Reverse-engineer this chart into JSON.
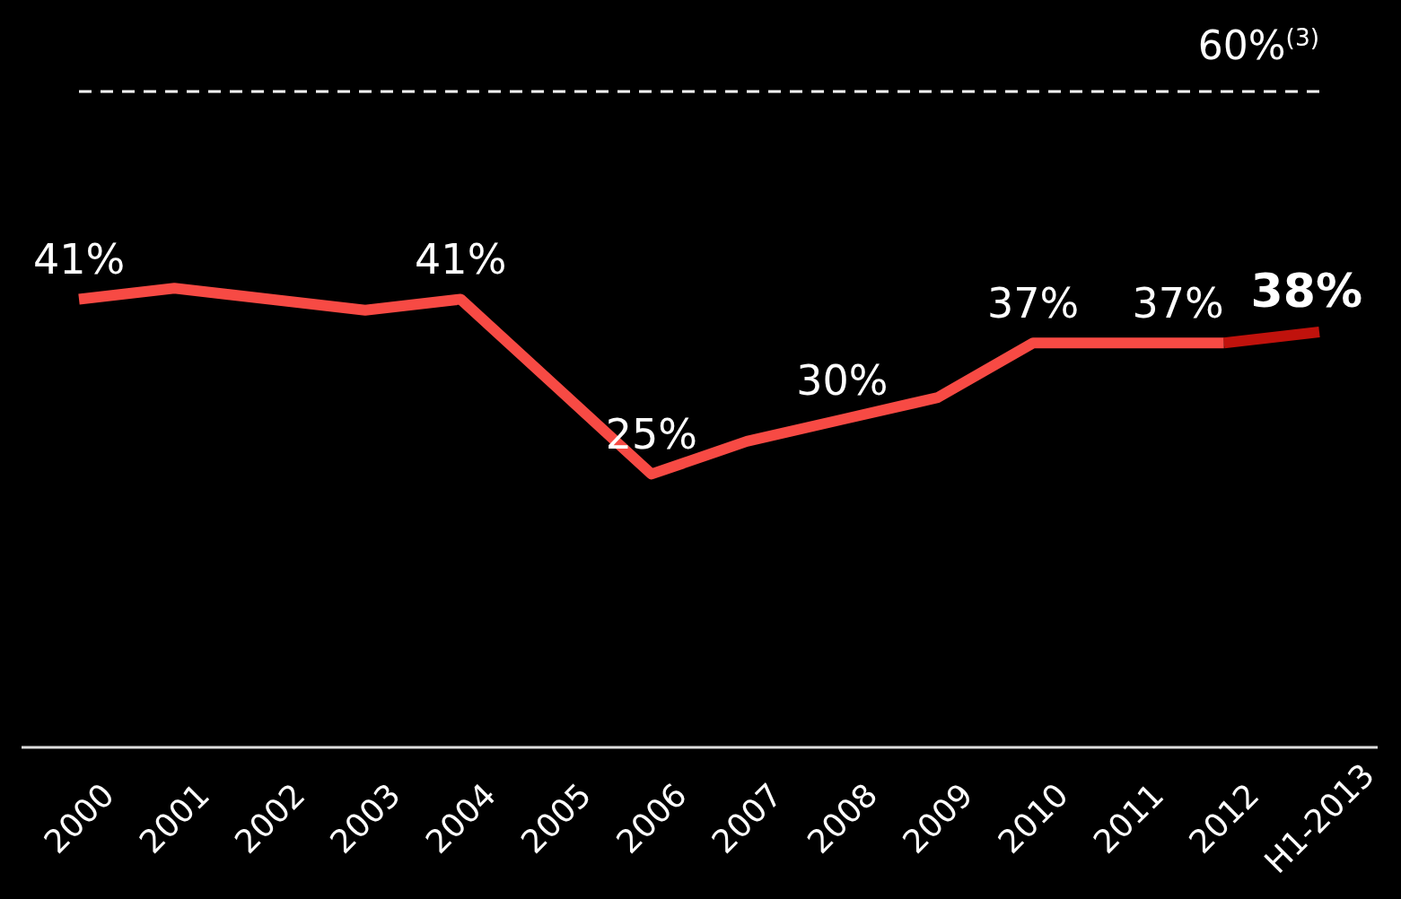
{
  "chart_data": {
    "type": "line",
    "categories": [
      "2000",
      "2001",
      "2002",
      "2003",
      "2004",
      "2005",
      "2006",
      "2007",
      "2008",
      "2009",
      "2010",
      "2011",
      "2012",
      "H1-2013"
    ],
    "series": [
      {
        "color": "#f74a44",
        "values": [
          41,
          42,
          41,
          40,
          41,
          33,
          25,
          28,
          30,
          32,
          37,
          37,
          37,
          null
        ],
        "value_labels": [
          "41%",
          null,
          null,
          null,
          "41%",
          null,
          "25%",
          null,
          "30%",
          null,
          "37%",
          null,
          "37%",
          null
        ]
      },
      {
        "color": "#c0120c",
        "values": [
          null,
          null,
          null,
          null,
          null,
          null,
          null,
          null,
          null,
          null,
          null,
          null,
          37,
          38
        ],
        "value_labels": [
          null,
          null,
          null,
          null,
          null,
          null,
          null,
          null,
          null,
          null,
          null,
          null,
          null,
          "38%"
        ]
      }
    ],
    "tick_labels": "x",
    "grid": false,
    "marker": "none",
    "line_style": "solid",
    "ref_lines": [
      {
        "axis": "y",
        "value": 60,
        "label": "60%$^{(3)}$",
        "color": "#ffffff",
        "line_style": "dashed"
      }
    ]
  }
}
